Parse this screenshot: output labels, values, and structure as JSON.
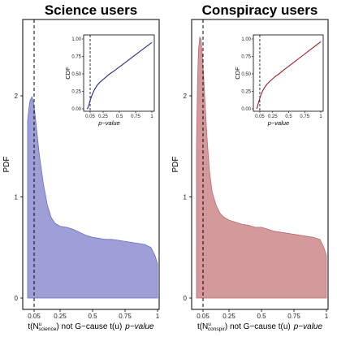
{
  "colors": {
    "science_fill": "#9d9fd6",
    "science_stroke": "#6a6dbf",
    "science_cdf": "#1f2a8c",
    "conspiracy_fill": "#d4999b",
    "conspiracy_stroke": "#b86a6e",
    "conspiracy_cdf": "#9a1e24"
  },
  "chart_data": [
    {
      "type": "area",
      "title": "Science users",
      "ylabel": "PDF",
      "xlabel_prefix": "t(N",
      "xlabel_sup": "u",
      "xlabel_sub": "science",
      "xlabel_mid": ") not G−cause t(u)",
      "xlabel_italic": "p−value",
      "x_tick_labels": [
        "0.05",
        "0.25",
        "0.5",
        "0.75",
        "1"
      ],
      "x_ticks": [
        0.05,
        0.25,
        0.5,
        0.75,
        1
      ],
      "y_tick_labels": [
        "0",
        "1",
        "2"
      ],
      "y_ticks": [
        0,
        1,
        2
      ],
      "xlim": [
        0,
        1
      ],
      "ylim": [
        -0.05,
        2.6
      ],
      "vline": 0.05,
      "pdf_x": [
        0,
        0.01,
        0.02,
        0.035,
        0.05,
        0.07,
        0.09,
        0.12,
        0.15,
        0.18,
        0.21,
        0.25,
        0.3,
        0.35,
        0.4,
        0.45,
        0.5,
        0.55,
        0.6,
        0.65,
        0.7,
        0.75,
        0.8,
        0.85,
        0.9,
        0.95,
        0.98,
        1
      ],
      "pdf_y": [
        1.75,
        1.88,
        1.96,
        1.99,
        1.9,
        1.66,
        1.42,
        1.14,
        0.93,
        0.8,
        0.74,
        0.71,
        0.7,
        0.68,
        0.65,
        0.62,
        0.6,
        0.59,
        0.58,
        0.58,
        0.57,
        0.56,
        0.55,
        0.54,
        0.53,
        0.5,
        0.42,
        0.34
      ],
      "inset": {
        "ylabel": "CDF",
        "xlabel": "p−value",
        "x_tick_labels": [
          "0.05",
          "0.25",
          "0.5",
          "0.75",
          "1"
        ],
        "x_ticks": [
          0.05,
          0.25,
          0.5,
          0.75,
          1
        ],
        "y_tick_labels": [
          "0.00",
          "0.25",
          "0.50",
          "0.75",
          "1.00"
        ],
        "y_ticks": [
          0,
          0.25,
          0.5,
          0.75,
          1
        ],
        "vline": 0.05,
        "cdf_x": [
          0,
          0.015,
          0.03,
          0.05,
          0.08,
          0.12,
          0.16,
          0.2,
          0.25,
          0.3,
          0.35,
          0.4,
          0.5,
          0.6,
          0.7,
          0.8,
          0.9,
          1
        ],
        "cdf_y": [
          0,
          0.01,
          0.05,
          0.12,
          0.2,
          0.28,
          0.34,
          0.38,
          0.42,
          0.46,
          0.5,
          0.53,
          0.6,
          0.67,
          0.74,
          0.81,
          0.88,
          0.95
        ]
      }
    },
    {
      "type": "area",
      "title": "Conspiracy users",
      "ylabel": "PDF",
      "xlabel_prefix": "t(N",
      "xlabel_sup": "u",
      "xlabel_sub": "conspir",
      "xlabel_mid": ") not G−cause t(u)",
      "xlabel_italic": "p−value",
      "x_tick_labels": [
        "0.05",
        "0.25",
        "0.5",
        "0.75",
        "1"
      ],
      "x_ticks": [
        0.05,
        0.25,
        0.5,
        0.75,
        1
      ],
      "y_tick_labels": [
        "0",
        "1",
        "2"
      ],
      "y_ticks": [
        0,
        1,
        2
      ],
      "xlim": [
        0,
        1
      ],
      "ylim": [
        -0.05,
        2.6
      ],
      "vline": 0.05,
      "pdf_x": [
        0,
        0.008,
        0.015,
        0.025,
        0.035,
        0.05,
        0.065,
        0.08,
        0.1,
        0.12,
        0.15,
        0.18,
        0.21,
        0.25,
        0.3,
        0.35,
        0.4,
        0.45,
        0.5,
        0.55,
        0.6,
        0.65,
        0.7,
        0.75,
        0.8,
        0.85,
        0.9,
        0.95,
        0.98,
        1
      ],
      "pdf_y": [
        1.5,
        2.15,
        2.45,
        2.58,
        2.56,
        2.3,
        1.95,
        1.6,
        1.25,
        1.05,
        0.92,
        0.84,
        0.8,
        0.77,
        0.75,
        0.73,
        0.72,
        0.7,
        0.7,
        0.68,
        0.66,
        0.65,
        0.64,
        0.63,
        0.62,
        0.61,
        0.6,
        0.58,
        0.5,
        0.42
      ],
      "inset": {
        "ylabel": "CDF",
        "xlabel": "p−value",
        "x_tick_labels": [
          "0.05",
          "0.25",
          "0.5",
          "0.75",
          "1"
        ],
        "x_ticks": [
          0.05,
          0.25,
          0.5,
          0.75,
          1
        ],
        "y_tick_labels": [
          "0.00",
          "0.25",
          "0.50",
          "0.75",
          "1.00"
        ],
        "y_ticks": [
          0,
          0.25,
          0.5,
          0.75,
          1
        ],
        "vline": 0.05,
        "cdf_x": [
          0,
          0.01,
          0.02,
          0.04,
          0.06,
          0.09,
          0.12,
          0.16,
          0.2,
          0.25,
          0.3,
          0.35,
          0.4,
          0.5,
          0.6,
          0.7,
          0.8,
          0.9,
          1
        ],
        "cdf_y": [
          0,
          0.02,
          0.06,
          0.12,
          0.18,
          0.25,
          0.3,
          0.35,
          0.39,
          0.43,
          0.47,
          0.5,
          0.54,
          0.61,
          0.68,
          0.75,
          0.82,
          0.89,
          0.96
        ]
      }
    }
  ]
}
